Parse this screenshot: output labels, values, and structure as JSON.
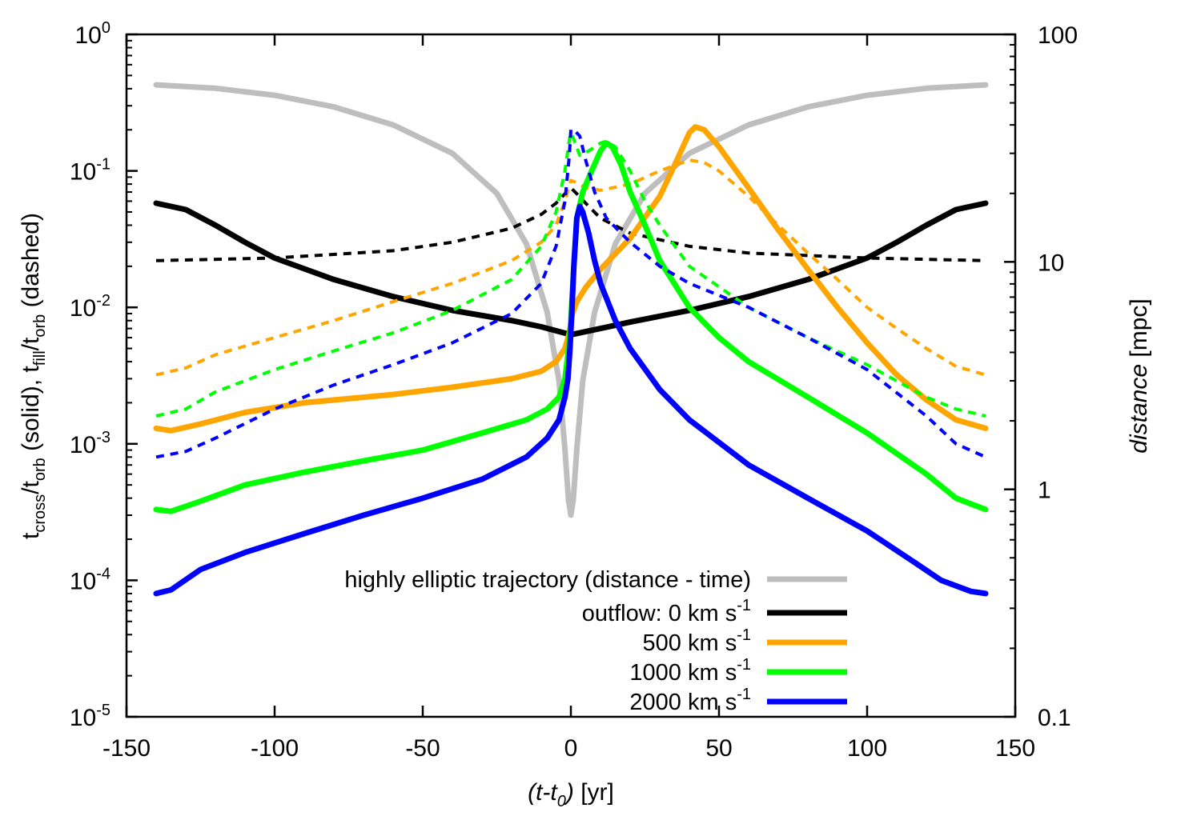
{
  "chart_data": {
    "type": "line",
    "x_axis": {
      "label_html": "(t-t0) [yr]",
      "label_parts": [
        "(t-t",
        "0",
        ")",
        " [yr]"
      ],
      "range": [
        -150,
        150
      ],
      "ticks": [
        -150,
        -100,
        -50,
        0,
        50,
        100,
        150
      ],
      "tick_labels": [
        "-150",
        "-100",
        "-50",
        "0",
        "50",
        "100",
        "150"
      ]
    },
    "y_axis_left": {
      "scale": "log",
      "range": [
        1e-05,
        1
      ],
      "ticks": [
        1e-05,
        0.0001,
        0.001,
        0.01,
        0.1,
        1
      ],
      "tick_bases": [
        "10",
        "10",
        "10",
        "10",
        "10",
        "10"
      ],
      "tick_exponents": [
        "-5",
        "-4",
        "-3",
        "-2",
        "-1",
        "0"
      ],
      "label_parts": [
        "t",
        "cross",
        "/t",
        "orb",
        " (solid),  t",
        "fill",
        "/t",
        "orb",
        " (dashed)"
      ]
    },
    "y_axis_right": {
      "scale": "log",
      "range": [
        0.1,
        100
      ],
      "ticks": [
        0.1,
        1,
        10,
        100
      ],
      "tick_labels": [
        "0.1",
        "1",
        "10",
        "100"
      ],
      "label_parts": [
        "distance",
        " [mpc]"
      ]
    },
    "series": [
      {
        "name": "highly elliptic trajectory (distance - time)",
        "axis": "right",
        "style": "solid",
        "color": "#bebebe",
        "points": [
          [
            -140,
            60
          ],
          [
            -120,
            58
          ],
          [
            -100,
            54
          ],
          [
            -80,
            48
          ],
          [
            -60,
            40
          ],
          [
            -40,
            30
          ],
          [
            -25,
            20
          ],
          [
            -15,
            12
          ],
          [
            -8,
            6
          ],
          [
            -4,
            3
          ],
          [
            -2,
            1.5
          ],
          [
            -0.8,
            0.9
          ],
          [
            0,
            0.77
          ],
          [
            0.8,
            0.9
          ],
          [
            2,
            1.5
          ],
          [
            4,
            3
          ],
          [
            8,
            6
          ],
          [
            15,
            12
          ],
          [
            25,
            20
          ],
          [
            40,
            30
          ],
          [
            60,
            40
          ],
          [
            80,
            48
          ],
          [
            100,
            54
          ],
          [
            120,
            58
          ],
          [
            140,
            60
          ]
        ]
      },
      {
        "name": "outflow: 0 km s-1 (solid)",
        "axis": "left",
        "style": "solid",
        "color": "#000000",
        "points": [
          [
            -140,
            0.058
          ],
          [
            -130,
            0.052
          ],
          [
            -120,
            0.04
          ],
          [
            -110,
            0.03
          ],
          [
            -100,
            0.023
          ],
          [
            -80,
            0.016
          ],
          [
            -60,
            0.012
          ],
          [
            -40,
            0.0095
          ],
          [
            -20,
            0.008
          ],
          [
            -10,
            0.0072
          ],
          [
            0,
            0.0063
          ],
          [
            10,
            0.007
          ],
          [
            20,
            0.0078
          ],
          [
            40,
            0.0095
          ],
          [
            60,
            0.012
          ],
          [
            80,
            0.016
          ],
          [
            100,
            0.023
          ],
          [
            110,
            0.03
          ],
          [
            120,
            0.04
          ],
          [
            130,
            0.052
          ],
          [
            140,
            0.058
          ]
        ]
      },
      {
        "name": "outflow: 0 km s-1 (dashed)",
        "axis": "left",
        "style": "dashed",
        "color": "#000000",
        "points": [
          [
            -140,
            0.022
          ],
          [
            -100,
            0.023
          ],
          [
            -60,
            0.026
          ],
          [
            -40,
            0.03
          ],
          [
            -20,
            0.038
          ],
          [
            -10,
            0.048
          ],
          [
            -5,
            0.058
          ],
          [
            -2,
            0.068
          ],
          [
            0,
            0.075
          ],
          [
            2,
            0.068
          ],
          [
            5,
            0.058
          ],
          [
            10,
            0.045
          ],
          [
            20,
            0.035
          ],
          [
            40,
            0.028
          ],
          [
            60,
            0.025
          ],
          [
            100,
            0.023
          ],
          [
            140,
            0.022
          ]
        ]
      },
      {
        "name": "500 km s-1 (solid)",
        "axis": "left",
        "style": "solid",
        "color": "#ffa500",
        "points": [
          [
            -140,
            0.0013
          ],
          [
            -135,
            0.00125
          ],
          [
            -125,
            0.0014
          ],
          [
            -110,
            0.0017
          ],
          [
            -90,
            0.002
          ],
          [
            -60,
            0.0023
          ],
          [
            -40,
            0.0026
          ],
          [
            -20,
            0.003
          ],
          [
            -10,
            0.0034
          ],
          [
            -5,
            0.004
          ],
          [
            -2,
            0.005
          ],
          [
            -0.5,
            0.0065
          ],
          [
            0.5,
            0.009
          ],
          [
            2,
            0.011
          ],
          [
            5,
            0.014
          ],
          [
            10,
            0.019
          ],
          [
            20,
            0.032
          ],
          [
            30,
            0.065
          ],
          [
            35,
            0.11
          ],
          [
            40,
            0.19
          ],
          [
            42,
            0.21
          ],
          [
            45,
            0.2
          ],
          [
            50,
            0.15
          ],
          [
            60,
            0.075
          ],
          [
            70,
            0.037
          ],
          [
            80,
            0.019
          ],
          [
            90,
            0.01
          ],
          [
            100,
            0.0055
          ],
          [
            110,
            0.0032
          ],
          [
            120,
            0.0021
          ],
          [
            130,
            0.0015
          ],
          [
            140,
            0.0013
          ]
        ]
      },
      {
        "name": "500 km s-1 (dashed)",
        "axis": "left",
        "style": "dashed",
        "color": "#ffa500",
        "points": [
          [
            -140,
            0.0032
          ],
          [
            -130,
            0.0036
          ],
          [
            -120,
            0.0045
          ],
          [
            -100,
            0.006
          ],
          [
            -80,
            0.008
          ],
          [
            -60,
            0.011
          ],
          [
            -40,
            0.015
          ],
          [
            -20,
            0.022
          ],
          [
            -10,
            0.03
          ],
          [
            -5,
            0.04
          ],
          [
            -2,
            0.06
          ],
          [
            0,
            0.085
          ],
          [
            2,
            0.082
          ],
          [
            5,
            0.075
          ],
          [
            10,
            0.072
          ],
          [
            20,
            0.08
          ],
          [
            30,
            0.1
          ],
          [
            40,
            0.12
          ],
          [
            45,
            0.115
          ],
          [
            50,
            0.1
          ],
          [
            60,
            0.065
          ],
          [
            70,
            0.04
          ],
          [
            80,
            0.025
          ],
          [
            90,
            0.016
          ],
          [
            100,
            0.01
          ],
          [
            110,
            0.007
          ],
          [
            120,
            0.005
          ],
          [
            130,
            0.0037
          ],
          [
            140,
            0.0032
          ]
        ]
      },
      {
        "name": "1000 km s-1 (solid)",
        "axis": "left",
        "style": "solid",
        "color": "#00ff00",
        "points": [
          [
            -140,
            0.00033
          ],
          [
            -135,
            0.00032
          ],
          [
            -125,
            0.00038
          ],
          [
            -110,
            0.0005
          ],
          [
            -90,
            0.00062
          ],
          [
            -70,
            0.00075
          ],
          [
            -50,
            0.0009
          ],
          [
            -30,
            0.0012
          ],
          [
            -15,
            0.0015
          ],
          [
            -8,
            0.0018
          ],
          [
            -4,
            0.0022
          ],
          [
            -2,
            0.003
          ],
          [
            -1,
            0.0045
          ],
          [
            0,
            0.008
          ],
          [
            1,
            0.02
          ],
          [
            2,
            0.045
          ],
          [
            4,
            0.07
          ],
          [
            7,
            0.1
          ],
          [
            10,
            0.14
          ],
          [
            12,
            0.16
          ],
          [
            14,
            0.15
          ],
          [
            17,
            0.11
          ],
          [
            20,
            0.07
          ],
          [
            25,
            0.04
          ],
          [
            30,
            0.022
          ],
          [
            40,
            0.01
          ],
          [
            50,
            0.006
          ],
          [
            60,
            0.004
          ],
          [
            80,
            0.0022
          ],
          [
            100,
            0.0012
          ],
          [
            120,
            0.0006
          ],
          [
            130,
            0.0004
          ],
          [
            140,
            0.00033
          ]
        ]
      },
      {
        "name": "1000 km s-1 (dashed)",
        "axis": "left",
        "style": "dashed",
        "color": "#00ff00",
        "points": [
          [
            -140,
            0.0016
          ],
          [
            -130,
            0.0018
          ],
          [
            -120,
            0.0024
          ],
          [
            -100,
            0.0035
          ],
          [
            -80,
            0.0048
          ],
          [
            -60,
            0.0065
          ],
          [
            -40,
            0.0095
          ],
          [
            -20,
            0.016
          ],
          [
            -10,
            0.028
          ],
          [
            -5,
            0.05
          ],
          [
            -2,
            0.1
          ],
          [
            -0.5,
            0.17
          ],
          [
            0,
            0.19
          ],
          [
            1,
            0.17
          ],
          [
            3,
            0.13
          ],
          [
            6,
            0.14
          ],
          [
            10,
            0.16
          ],
          [
            12,
            0.165
          ],
          [
            15,
            0.15
          ],
          [
            20,
            0.1
          ],
          [
            25,
            0.06
          ],
          [
            30,
            0.04
          ],
          [
            40,
            0.02
          ],
          [
            60,
            0.01
          ],
          [
            80,
            0.006
          ],
          [
            100,
            0.0038
          ],
          [
            120,
            0.0022
          ],
          [
            130,
            0.0018
          ],
          [
            140,
            0.0016
          ]
        ]
      },
      {
        "name": "2000 km s-1 (solid)",
        "axis": "left",
        "style": "solid",
        "color": "#0000ff",
        "points": [
          [
            -140,
            8e-05
          ],
          [
            -135,
            8.5e-05
          ],
          [
            -125,
            0.00012
          ],
          [
            -110,
            0.00016
          ],
          [
            -90,
            0.00022
          ],
          [
            -70,
            0.0003
          ],
          [
            -50,
            0.0004
          ],
          [
            -30,
            0.00055
          ],
          [
            -15,
            0.0008
          ],
          [
            -8,
            0.0011
          ],
          [
            -4,
            0.0015
          ],
          [
            -2,
            0.0022
          ],
          [
            -1,
            0.003
          ],
          [
            -0.3,
            0.005
          ],
          [
            0.3,
            0.009
          ],
          [
            1,
            0.02
          ],
          [
            2,
            0.045
          ],
          [
            3,
            0.055
          ],
          [
            4,
            0.05
          ],
          [
            6,
            0.035
          ],
          [
            8,
            0.022
          ],
          [
            10,
            0.015
          ],
          [
            15,
            0.008
          ],
          [
            20,
            0.005
          ],
          [
            30,
            0.0025
          ],
          [
            40,
            0.0015
          ],
          [
            60,
            0.0007
          ],
          [
            80,
            0.0004
          ],
          [
            100,
            0.00023
          ],
          [
            115,
            0.00014
          ],
          [
            125,
            0.0001
          ],
          [
            135,
            8.3e-05
          ],
          [
            140,
            8e-05
          ]
        ]
      },
      {
        "name": "2000 km s-1 (dashed)",
        "axis": "left",
        "style": "dashed",
        "color": "#0000ff",
        "points": [
          [
            -140,
            0.0008
          ],
          [
            -130,
            0.00088
          ],
          [
            -120,
            0.0011
          ],
          [
            -100,
            0.0018
          ],
          [
            -80,
            0.0027
          ],
          [
            -60,
            0.0038
          ],
          [
            -40,
            0.0055
          ],
          [
            -20,
            0.009
          ],
          [
            -10,
            0.015
          ],
          [
            -5,
            0.028
          ],
          [
            -2,
            0.06
          ],
          [
            -0.5,
            0.13
          ],
          [
            0,
            0.2
          ],
          [
            1,
            0.2
          ],
          [
            3,
            0.18
          ],
          [
            5,
            0.12
          ],
          [
            8,
            0.07
          ],
          [
            12,
            0.045
          ],
          [
            20,
            0.03
          ],
          [
            30,
            0.02
          ],
          [
            40,
            0.015
          ],
          [
            60,
            0.01
          ],
          [
            80,
            0.006
          ],
          [
            100,
            0.0035
          ],
          [
            120,
            0.0016
          ],
          [
            130,
            0.001
          ],
          [
            140,
            0.0008
          ]
        ]
      }
    ],
    "legend": {
      "placement": "bottom-center",
      "entries": [
        {
          "label_main": "highly elliptic trajectory (distance - time)",
          "label_sup": "",
          "color": "#bebebe"
        },
        {
          "label_main": "outflow:   0 km s",
          "label_sup": "-1",
          "color": "#000000"
        },
        {
          "label_main": "500 km s",
          "label_sup": "-1",
          "color": "#ffa500"
        },
        {
          "label_main": "1000 km s",
          "label_sup": "-1",
          "color": "#00ff00"
        },
        {
          "label_main": "2000 km s",
          "label_sup": "-1",
          "color": "#0000ff"
        }
      ]
    }
  }
}
